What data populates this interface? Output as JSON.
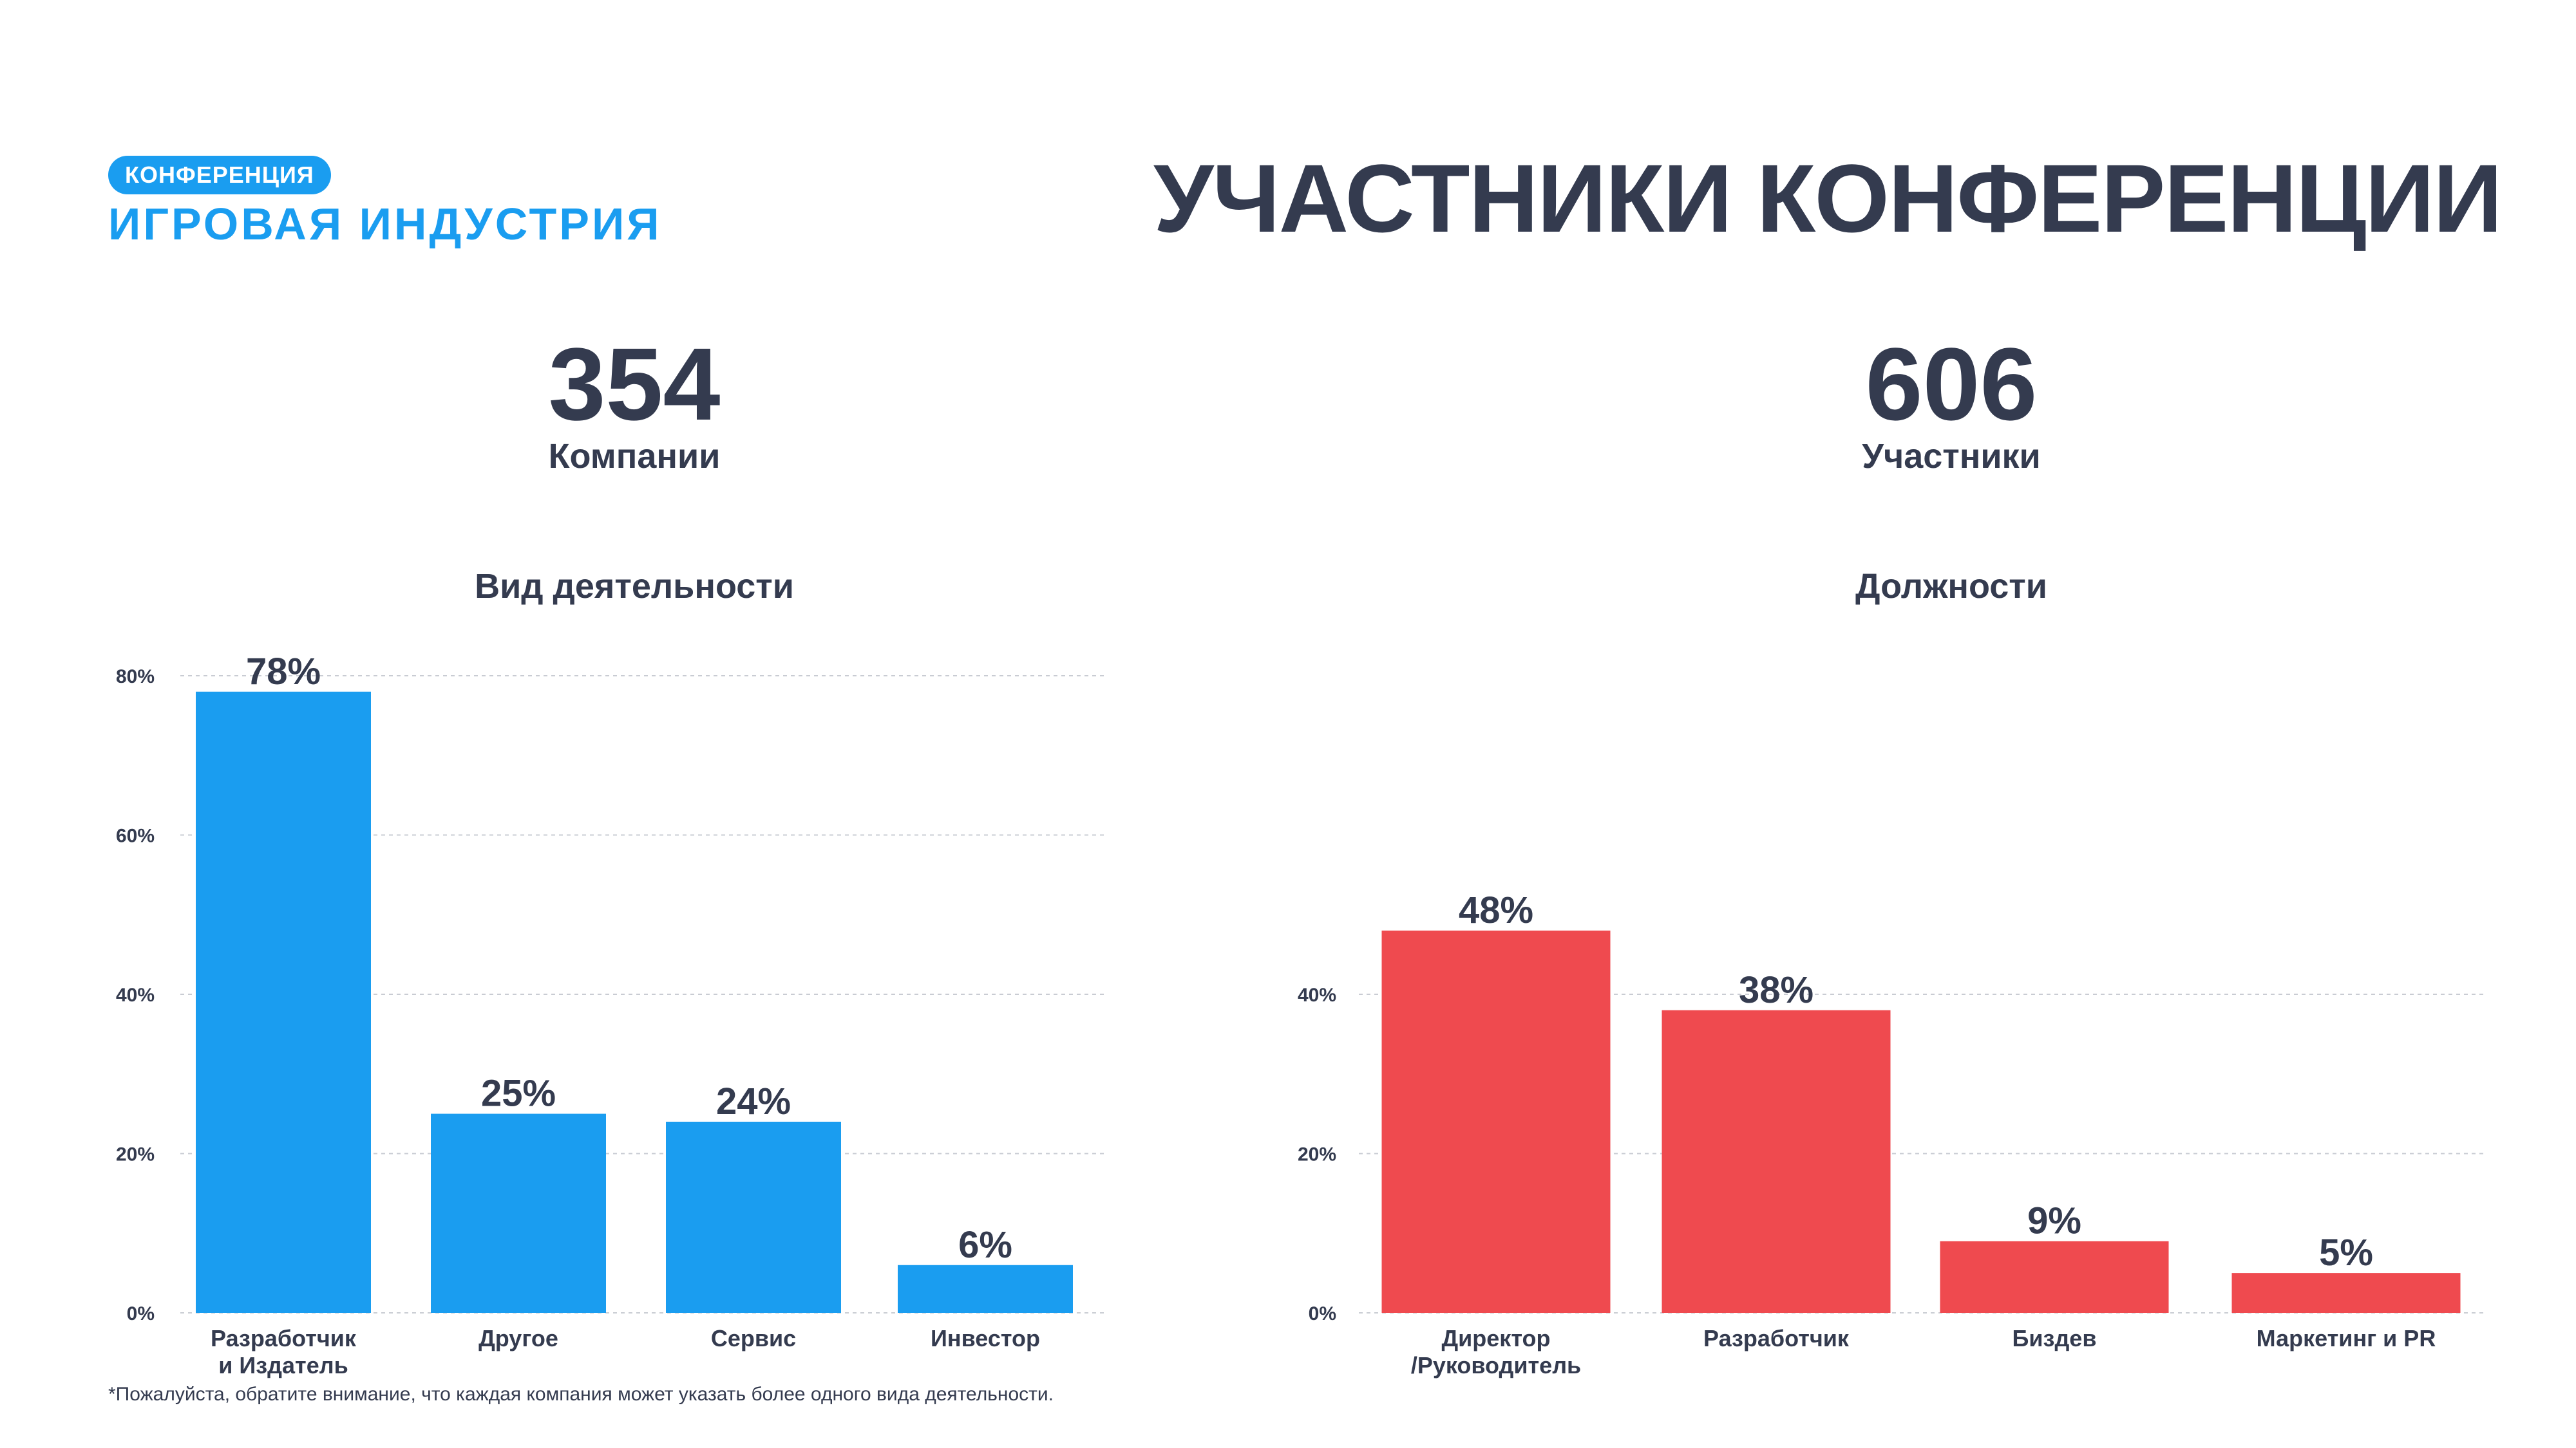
{
  "logo": {
    "badge": "КОНФЕРЕНЦИЯ",
    "name": "ИГРОВАЯ ИНДУСТРИЯ"
  },
  "title": "УЧАСТНИКИ КОНФЕРЕНЦИИ",
  "stats": [
    {
      "value": "354",
      "label": "Компании"
    },
    {
      "value": "606",
      "label": "Участники"
    }
  ],
  "footnote": "*Пожалуйста, обратите внимание, что каждая компания может указать более одного вида деятельности.",
  "colors": {
    "accent_blue": "#1a9df0",
    "accent_red": "#ef4a4f",
    "text_dark": "#343b4f"
  },
  "chart_data": [
    {
      "type": "bar",
      "title": "Вид деятельности",
      "categories": [
        "Разработчик\nи Издатель",
        "Другое",
        "Сервис",
        "Инвестор"
      ],
      "values": [
        78,
        25,
        24,
        6
      ],
      "value_labels": [
        "78%",
        "25%",
        "24%",
        "6%"
      ],
      "yticks": [
        0,
        20,
        40,
        60,
        80
      ],
      "ytick_labels": [
        "0%",
        "20%",
        "40%",
        "60%",
        "80%"
      ],
      "ylim": [
        0,
        80
      ],
      "grid": true,
      "color": "#1a9df0"
    },
    {
      "type": "bar",
      "title": "Должности",
      "categories": [
        "Директор\n/Руководитель",
        "Разработчик",
        "Биздев",
        "Маркетинг и PR"
      ],
      "values": [
        48,
        38,
        9,
        5
      ],
      "value_labels": [
        "48%",
        "38%",
        "9%",
        "5%"
      ],
      "yticks": [
        0,
        20,
        40
      ],
      "ytick_labels": [
        "0%",
        "20%",
        "40%"
      ],
      "ylim": [
        0,
        80
      ],
      "grid": true,
      "color": "#ef4a4f"
    }
  ]
}
